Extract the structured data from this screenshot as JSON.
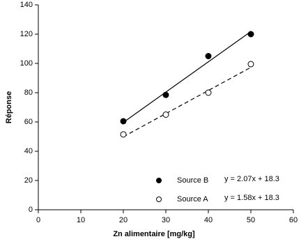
{
  "chart_data": {
    "type": "scatter",
    "xlabel": "Zn alimentaire [mg/kg]",
    "ylabel": "Réponse",
    "xlim": [
      0,
      60
    ],
    "xticks": [
      0,
      10,
      20,
      30,
      40,
      50,
      60
    ],
    "ylim": [
      0,
      140
    ],
    "yticks": [
      0,
      20,
      40,
      60,
      80,
      100,
      120,
      140
    ],
    "grid": false,
    "legend": "lower right",
    "series": [
      {
        "name": "Source B",
        "color": "#000000",
        "filled": true,
        "x": [
          20,
          30,
          40,
          50
        ],
        "values": [
          60.5,
          78.5,
          105,
          120
        ],
        "equation": "y = 2.07x + 18.3",
        "trendline": {
          "dash": false,
          "x": [
            20,
            50
          ],
          "values": [
            59.7,
            121.8
          ]
        }
      },
      {
        "name": "Source A",
        "color": "#000000",
        "filled": false,
        "x": [
          20,
          30,
          40,
          50
        ],
        "values": [
          51.5,
          65,
          80,
          99.5
        ],
        "equation": "y = 1.58x + 18.3",
        "trendline": {
          "dash": true,
          "x": [
            20,
            50
          ],
          "values": [
            49.9,
            97.3
          ]
        }
      }
    ]
  }
}
